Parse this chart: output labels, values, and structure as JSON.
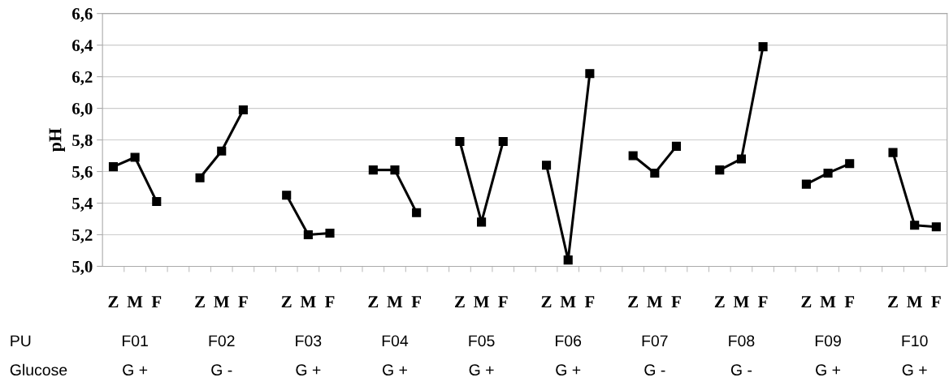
{
  "chart_data": {
    "type": "line",
    "ylabel": "pH",
    "categories": [
      "Z",
      "M",
      "F",
      null,
      "Z",
      "M",
      "F",
      null,
      "Z",
      "M",
      "F",
      null,
      "Z",
      "M",
      "F",
      null,
      "Z",
      "M",
      "F",
      null,
      "Z",
      "M",
      "F",
      null,
      "Z",
      "M",
      "F",
      null,
      "Z",
      "M",
      "F",
      null,
      "Z",
      "M",
      "F",
      null,
      "Z",
      "M",
      "F"
    ],
    "series": [
      {
        "color": "#000000",
        "values": [
          5.63,
          5.69,
          5.41,
          null,
          null,
          null,
          null,
          null,
          null,
          null,
          null,
          null,
          null,
          null,
          null,
          null,
          null,
          null,
          null,
          null,
          null,
          null,
          null,
          null,
          null,
          null,
          null,
          null,
          null,
          null,
          null,
          null,
          null,
          null,
          null,
          null,
          null,
          null,
          null
        ]
      },
      {
        "color": "#000000",
        "values": [
          null,
          null,
          null,
          null,
          5.56,
          5.73,
          5.99,
          null,
          null,
          null,
          null,
          null,
          null,
          null,
          null,
          null,
          null,
          null,
          null,
          null,
          null,
          null,
          null,
          null,
          null,
          null,
          null,
          null,
          null,
          null,
          null,
          null,
          null,
          null,
          null,
          null,
          null,
          null,
          null
        ]
      },
      {
        "color": "#000000",
        "values": [
          null,
          null,
          null,
          null,
          null,
          null,
          null,
          null,
          5.45,
          5.2,
          5.21,
          null,
          null,
          null,
          null,
          null,
          null,
          null,
          null,
          null,
          null,
          null,
          null,
          null,
          null,
          null,
          null,
          null,
          null,
          null,
          null,
          null,
          null,
          null,
          null,
          null,
          null,
          null,
          null
        ]
      },
      {
        "color": "#000000",
        "values": [
          null,
          null,
          null,
          null,
          null,
          null,
          null,
          null,
          null,
          null,
          null,
          null,
          5.61,
          5.61,
          5.34,
          null,
          null,
          null,
          null,
          null,
          null,
          null,
          null,
          null,
          null,
          null,
          null,
          null,
          null,
          null,
          null,
          null,
          null,
          null,
          null,
          null,
          null,
          null,
          null
        ]
      },
      {
        "color": "#000000",
        "values": [
          null,
          null,
          null,
          null,
          null,
          null,
          null,
          null,
          null,
          null,
          null,
          null,
          null,
          null,
          null,
          null,
          5.79,
          5.28,
          5.79,
          null,
          null,
          null,
          null,
          null,
          null,
          null,
          null,
          null,
          null,
          null,
          null,
          null,
          null,
          null,
          null,
          null,
          null,
          null,
          null
        ]
      },
      {
        "color": "#000000",
        "values": [
          null,
          null,
          null,
          null,
          null,
          null,
          null,
          null,
          null,
          null,
          null,
          null,
          null,
          null,
          null,
          null,
          null,
          null,
          null,
          null,
          5.64,
          5.04,
          6.22,
          null,
          null,
          null,
          null,
          null,
          null,
          null,
          null,
          null,
          null,
          null,
          null,
          null,
          null,
          null,
          null
        ]
      },
      {
        "color": "#000000",
        "values": [
          null,
          null,
          null,
          null,
          null,
          null,
          null,
          null,
          null,
          null,
          null,
          null,
          null,
          null,
          null,
          null,
          null,
          null,
          null,
          null,
          null,
          null,
          null,
          null,
          5.7,
          5.59,
          5.76,
          null,
          null,
          null,
          null,
          null,
          null,
          null,
          null,
          null,
          null,
          null,
          null
        ]
      },
      {
        "color": "#000000",
        "values": [
          null,
          null,
          null,
          null,
          null,
          null,
          null,
          null,
          null,
          null,
          null,
          null,
          null,
          null,
          null,
          null,
          null,
          null,
          null,
          null,
          null,
          null,
          null,
          null,
          null,
          null,
          null,
          null,
          5.61,
          5.68,
          6.39,
          null,
          null,
          null,
          null,
          null,
          null,
          null,
          null
        ]
      },
      {
        "color": "#000000",
        "values": [
          null,
          null,
          null,
          null,
          null,
          null,
          null,
          null,
          null,
          null,
          null,
          null,
          null,
          null,
          null,
          null,
          null,
          null,
          null,
          null,
          null,
          null,
          null,
          null,
          null,
          null,
          null,
          null,
          null,
          null,
          null,
          null,
          5.52,
          5.59,
          5.65,
          null,
          null,
          null,
          null
        ]
      },
      {
        "color": "#000000",
        "values": [
          null,
          null,
          null,
          null,
          null,
          null,
          null,
          null,
          null,
          null,
          null,
          null,
          null,
          null,
          null,
          null,
          null,
          null,
          null,
          null,
          null,
          null,
          null,
          null,
          null,
          null,
          null,
          null,
          null,
          null,
          null,
          null,
          null,
          null,
          null,
          null,
          5.72,
          5.26,
          5.25
        ]
      }
    ],
    "ylim": [
      5.0,
      6.6
    ],
    "yticks": [
      {
        "value": 5.0,
        "label": "5,0"
      },
      {
        "value": 5.2,
        "label": "5,2"
      },
      {
        "value": 5.4,
        "label": "5,4"
      },
      {
        "value": 5.6,
        "label": "5,6"
      },
      {
        "value": 5.8,
        "label": "5,8"
      },
      {
        "value": 6.0,
        "label": "6,0"
      },
      {
        "value": 6.2,
        "label": "6,2"
      },
      {
        "value": 6.4,
        "label": "6,4"
      },
      {
        "value": 6.6,
        "label": "6,6"
      }
    ],
    "grid": "y",
    "marker": "square",
    "line_style": "solid",
    "annotations": [
      "PU",
      "F01",
      "F02",
      "F03",
      "F04",
      "F05",
      "F06",
      "F07",
      "F08",
      "F09",
      "F10",
      "Glucose",
      "G +",
      "G -",
      "G +",
      "G +",
      "G +",
      "G +",
      "G -",
      "G -",
      "G +",
      "G +"
    ]
  }
}
